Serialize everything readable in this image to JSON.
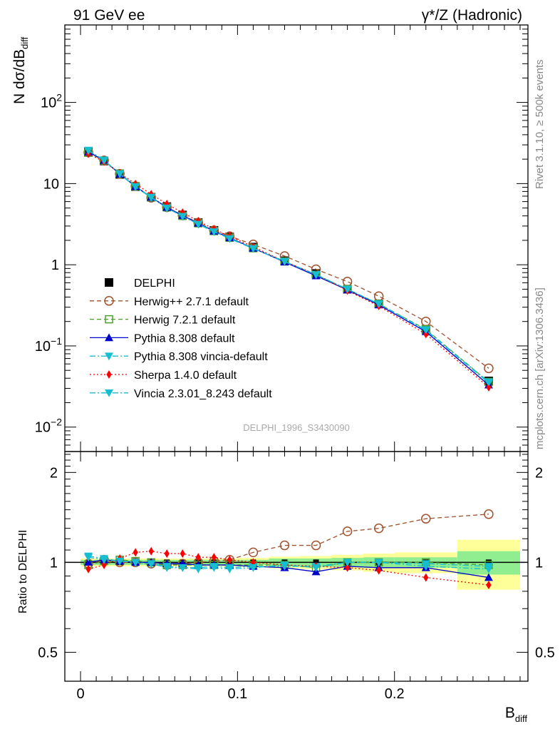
{
  "header": {
    "left_title": "91 GeV ee",
    "right_title": "γ*/Z (Hadronic)"
  },
  "side_labels": {
    "rivet": "Rivet 3.1.10, ≥ 500k events",
    "mcplots": "mcplots.cern.ch [arXiv:1306.3436]"
  },
  "analysis_id": "DELPHI_1996_S3430090",
  "colors": {
    "data": "#000000",
    "herwigpp": "#a0522d",
    "herwig7": "#4aa02c",
    "pythia": "#0000cc",
    "pythia_vincia": "#17becf",
    "sherpa": "#ff0000",
    "vincia": "#17becf",
    "band_inner": "#90ee90",
    "band_outer": "#ffff99"
  },
  "chart_data": [
    {
      "type": "line",
      "panel": "main",
      "xlabel": "B",
      "xlabel_sub": "diff",
      "ylabel": "N dσ/dB",
      "ylabel_sub": "diff",
      "xlim": [
        -0.01,
        0.285
      ],
      "ylim": [
        0.005,
        900
      ],
      "yscale": "log",
      "y_ticklabels": [
        {
          "v": 0.01,
          "base": "10",
          "exp": "−2"
        },
        {
          "v": 0.1,
          "base": "10",
          "exp": "−1"
        },
        {
          "v": 1,
          "base": "1",
          "exp": ""
        },
        {
          "v": 10,
          "base": "10",
          "exp": ""
        },
        {
          "v": 100,
          "base": "10",
          "exp": "2"
        }
      ],
      "x": [
        0.005,
        0.015,
        0.025,
        0.035,
        0.045,
        0.055,
        0.065,
        0.075,
        0.085,
        0.095,
        0.11,
        0.13,
        0.15,
        0.17,
        0.19,
        0.22,
        0.26
      ],
      "series": [
        {
          "name": "DELPHI",
          "key": "data",
          "marker": "square-filled",
          "line": "none",
          "values": [
            24.5,
            19.0,
            13.0,
            9.2,
            6.8,
            5.2,
            4.1,
            3.3,
            2.65,
            2.2,
            1.65,
            1.12,
            0.78,
            0.5,
            0.33,
            0.16,
            0.037
          ]
        },
        {
          "name": "Herwig++ 2.7.1 default",
          "key": "herwigpp",
          "marker": "circle-open",
          "line": "dashed",
          "values": [
            24.2,
            19.3,
            13.2,
            9.3,
            6.7,
            5.1,
            4.05,
            3.3,
            2.66,
            2.25,
            1.78,
            1.28,
            0.88,
            0.62,
            0.41,
            0.2,
            0.053
          ]
        },
        {
          "name": "Herwig 7.2.1 default",
          "key": "herwig7",
          "marker": "square-open",
          "line": "dashed",
          "values": [
            24.0,
            19.2,
            13.3,
            9.3,
            6.8,
            5.1,
            4.0,
            3.25,
            2.6,
            2.15,
            1.6,
            1.1,
            0.75,
            0.5,
            0.33,
            0.16,
            0.036
          ]
        },
        {
          "name": "Pythia 8.308 default",
          "key": "pythia",
          "marker": "triangle-up",
          "line": "solid",
          "values": [
            24.6,
            19.3,
            13.1,
            9.2,
            6.8,
            5.1,
            4.05,
            3.25,
            2.6,
            2.15,
            1.6,
            1.08,
            0.73,
            0.49,
            0.32,
            0.15,
            0.033
          ]
        },
        {
          "name": "Pythia 8.308 vincia-default",
          "key": "pythia_vincia",
          "marker": "triangle-down",
          "line": "dashdot",
          "values": [
            25.8,
            19.5,
            13.1,
            9.1,
            6.7,
            5.0,
            3.95,
            3.2,
            2.58,
            2.12,
            1.6,
            1.09,
            0.76,
            0.5,
            0.33,
            0.155,
            0.035
          ]
        },
        {
          "name": "Sherpa 1.4.0 default",
          "key": "sherpa",
          "marker": "diamond",
          "line": "dotted",
          "values": [
            23.3,
            18.6,
            13.4,
            9.9,
            7.4,
            5.6,
            4.4,
            3.45,
            2.75,
            2.25,
            1.66,
            1.1,
            0.76,
            0.48,
            0.31,
            0.14,
            0.031
          ]
        },
        {
          "name": "Vincia 2.3.01_8.243 default",
          "key": "vincia",
          "marker": "triangle-down",
          "line": "dashdot",
          "values": [
            25.4,
            19.3,
            13.2,
            9.2,
            6.8,
            5.0,
            3.95,
            3.15,
            2.55,
            2.1,
            1.58,
            1.1,
            0.75,
            0.5,
            0.33,
            0.158,
            0.036
          ]
        }
      ]
    },
    {
      "type": "line",
      "panel": "ratio",
      "ylabel": "Ratio to DELPHI",
      "xlim": [
        -0.01,
        0.285
      ],
      "ylim": [
        0.4,
        2.35
      ],
      "yscale": "log",
      "y_ticklabels": [
        {
          "v": 0.5,
          "label": "0.5"
        },
        {
          "v": 1,
          "label": "1"
        },
        {
          "v": 2,
          "label": "2"
        }
      ],
      "x_ticklabels": [
        {
          "v": 0,
          "label": "0"
        },
        {
          "v": 0.1,
          "label": "0.1"
        },
        {
          "v": 0.2,
          "label": "0.2"
        }
      ],
      "bins": [
        0,
        0.01,
        0.02,
        0.03,
        0.04,
        0.05,
        0.06,
        0.07,
        0.08,
        0.09,
        0.1,
        0.12,
        0.14,
        0.16,
        0.18,
        0.2,
        0.24,
        0.28
      ],
      "band_inner": [
        0.02,
        0.02,
        0.02,
        0.02,
        0.02,
        0.02,
        0.02,
        0.02,
        0.02,
        0.02,
        0.02,
        0.03,
        0.03,
        0.035,
        0.04,
        0.04,
        0.09
      ],
      "band_outer": [
        0.03,
        0.03,
        0.03,
        0.03,
        0.03,
        0.03,
        0.03,
        0.03,
        0.03,
        0.03,
        0.035,
        0.045,
        0.05,
        0.06,
        0.07,
        0.08,
        0.19
      ],
      "x": [
        0.005,
        0.015,
        0.025,
        0.035,
        0.045,
        0.055,
        0.065,
        0.075,
        0.085,
        0.095,
        0.11,
        0.13,
        0.15,
        0.17,
        0.19,
        0.22,
        0.26
      ],
      "series": [
        {
          "name": "Herwig++ 2.7.1 default",
          "key": "herwigpp",
          "marker": "circle-open",
          "line": "dashed",
          "values": [
            0.99,
            1.02,
            1.0,
            1.0,
            0.99,
            0.98,
            0.99,
            1.0,
            1.01,
            1.02,
            1.08,
            1.14,
            1.14,
            1.27,
            1.3,
            1.4,
            1.45
          ]
        },
        {
          "name": "Herwig 7.2.1 default",
          "key": "herwig7",
          "marker": "square-open",
          "line": "dashed",
          "values": [
            0.98,
            1.01,
            1.02,
            1.01,
            1.0,
            0.98,
            0.98,
            0.98,
            0.98,
            0.98,
            0.98,
            0.98,
            0.96,
            1.0,
            1.0,
            1.0,
            0.98
          ]
        },
        {
          "name": "Pythia 8.308 default",
          "key": "pythia",
          "marker": "triangle-up",
          "line": "solid",
          "values": [
            1.0,
            1.02,
            1.01,
            1.0,
            1.0,
            0.99,
            0.99,
            0.98,
            0.98,
            0.98,
            0.97,
            0.96,
            0.93,
            0.97,
            0.96,
            0.96,
            0.89
          ]
        },
        {
          "name": "Pythia 8.308 vincia-default",
          "key": "pythia_vincia",
          "marker": "triangle-down",
          "line": "dashdot",
          "values": [
            1.05,
            1.03,
            1.01,
            1.0,
            0.99,
            0.96,
            0.96,
            0.96,
            0.97,
            0.96,
            0.97,
            0.97,
            0.97,
            1.0,
            1.0,
            0.97,
            0.95
          ]
        },
        {
          "name": "Sherpa 1.4.0 default",
          "key": "sherpa",
          "marker": "diamond",
          "line": "dotted",
          "values": [
            0.95,
            0.98,
            1.03,
            1.08,
            1.09,
            1.07,
            1.07,
            1.04,
            1.04,
            1.02,
            1.0,
            0.98,
            0.97,
            0.96,
            0.94,
            0.89,
            0.84
          ]
        },
        {
          "name": "Vincia 2.3.01_8.243 default",
          "key": "vincia",
          "marker": "triangle-down",
          "line": "dashdot",
          "values": [
            1.04,
            1.02,
            1.01,
            1.0,
            0.99,
            0.97,
            0.96,
            0.95,
            0.96,
            0.95,
            0.96,
            0.98,
            0.96,
            1.0,
            1.0,
            0.99,
            0.97
          ]
        }
      ]
    }
  ]
}
